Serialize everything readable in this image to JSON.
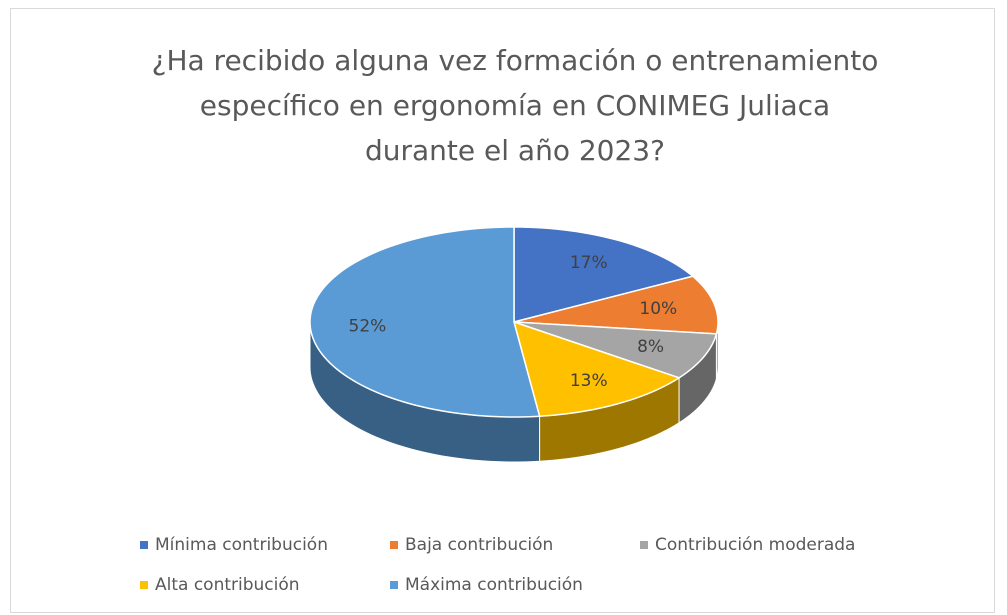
{
  "chart_data": {
    "type": "pie",
    "title": "¿Ha recibido alguna vez formación o entrenamiento específico en ergonomía en CONIMEG Juliaca durante el año 2023?",
    "categories": [
      "Mínima contribución",
      "Baja contribución",
      "Contribución moderada",
      "Alta contribución",
      "Máxima contribución"
    ],
    "values": [
      17,
      10,
      8,
      13,
      52
    ],
    "value_labels": [
      "17%",
      "10%",
      "8%",
      "13%",
      "52%"
    ],
    "colors": [
      "#4472c4",
      "#ed7d31",
      "#a5a5a5",
      "#ffc000",
      "#5b9bd5"
    ],
    "legend": "bottom"
  }
}
